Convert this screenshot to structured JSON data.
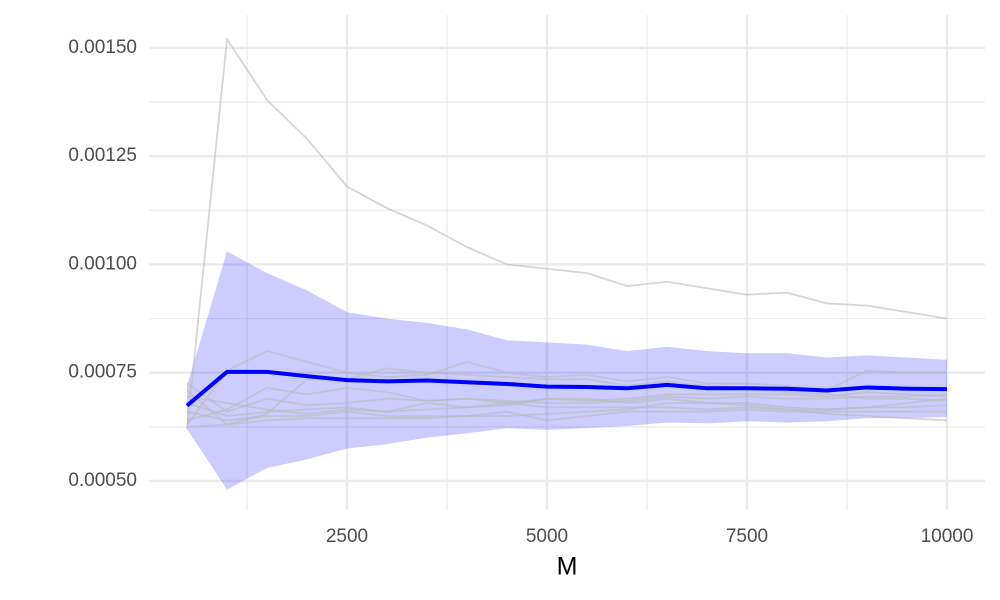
{
  "chart_data": {
    "type": "line",
    "x_label": "M",
    "x": [
      500,
      1000,
      1500,
      2000,
      2500,
      3000,
      3500,
      4000,
      4500,
      5000,
      5500,
      6000,
      6500,
      7000,
      7500,
      8000,
      8500,
      9000,
      9500,
      10000
    ],
    "xlim": [
      25,
      10475
    ],
    "ylim": [
      0.000433,
      0.001576
    ],
    "xticks": [
      2500,
      5000,
      7500,
      10000
    ],
    "x_minor_ticks": [
      1250,
      3750,
      6250,
      8750
    ],
    "yticks": [
      {
        "value": 0.0005,
        "label": "0.00050"
      },
      {
        "value": 0.00075,
        "label": "0.00075"
      },
      {
        "value": 0.001,
        "label": "0.00100"
      },
      {
        "value": 0.00125,
        "label": "0.00125"
      },
      {
        "value": 0.0015,
        "label": "0.00150"
      }
    ],
    "y_minor_ticks": [
      0.000625,
      0.000875,
      0.001125,
      0.001375
    ],
    "grid": true,
    "band": {
      "color": "#0000ff",
      "upper": [
        0.00072,
        0.00103,
        0.00098,
        0.00094,
        0.00089,
        0.000875,
        0.000865,
        0.00085,
        0.000825,
        0.00082,
        0.000815,
        0.0008,
        0.00081,
        0.0008,
        0.000795,
        0.000795,
        0.000785,
        0.00079,
        0.000785,
        0.00078
      ],
      "lower": [
        0.00062,
        0.00048,
        0.00053,
        0.00055,
        0.000575,
        0.000585,
        0.0006,
        0.00061,
        0.000622,
        0.000618,
        0.000622,
        0.000627,
        0.000635,
        0.000633,
        0.000638,
        0.000635,
        0.000638,
        0.000645,
        0.000645,
        0.000648
      ]
    },
    "series": [
      {
        "color": "#bbbbbb",
        "values": [
          0.00062,
          0.00152,
          0.00138,
          0.00129,
          0.00118,
          0.00113,
          0.00109,
          0.00104,
          0.001,
          0.00099,
          0.00098,
          0.00095,
          0.00096,
          0.000945,
          0.00093,
          0.000935,
          0.00091,
          0.000905,
          0.00089,
          0.000875
        ]
      },
      {
        "color": "#bbbbbb",
        "values": [
          0.000725,
          0.00066,
          0.00069,
          0.000675,
          0.00068,
          0.00069,
          0.000685,
          0.00069,
          0.000685,
          0.00068,
          0.00068,
          0.000685,
          0.000695,
          0.00069,
          0.000695,
          0.00069,
          0.00069,
          0.000695,
          0.000695,
          0.0007
        ]
      },
      {
        "color": "#bbbbbb",
        "values": [
          0.00063,
          0.000755,
          0.0008,
          0.000775,
          0.00075,
          0.00074,
          0.000745,
          0.000775,
          0.00075,
          0.00074,
          0.000745,
          0.00073,
          0.00074,
          0.000725,
          0.000725,
          0.00072,
          0.00071,
          0.000755,
          0.00075,
          0.00075
        ]
      },
      {
        "color": "#bbbbbb",
        "values": [
          0.00071,
          0.00063,
          0.000655,
          0.000735,
          0.000735,
          0.00076,
          0.00075,
          0.000745,
          0.00074,
          0.000735,
          0.000735,
          0.00072,
          0.00073,
          0.00072,
          0.000715,
          0.000705,
          0.0007,
          0.00069,
          0.00069,
          0.000685
        ]
      },
      {
        "color": "#bbbbbb",
        "values": [
          0.00064,
          0.000665,
          0.000715,
          0.0007,
          0.000715,
          0.000705,
          0.000685,
          0.00069,
          0.00068,
          0.00069,
          0.000685,
          0.00069,
          0.0007,
          0.0007,
          0.0007,
          0.0007,
          0.000695,
          0.000705,
          0.0007,
          0.000695
        ]
      },
      {
        "color": "#bbbbbb",
        "values": [
          0.000695,
          0.00068,
          0.000665,
          0.000655,
          0.000665,
          0.00066,
          0.000665,
          0.00067,
          0.000675,
          0.00069,
          0.00069,
          0.00068,
          0.00069,
          0.00068,
          0.00068,
          0.00067,
          0.000665,
          0.00067,
          0.00067,
          0.000675
        ]
      },
      {
        "color": "#bbbbbb",
        "values": [
          0.00066,
          0.00064,
          0.00065,
          0.00065,
          0.00066,
          0.00065,
          0.00065,
          0.00065,
          0.00066,
          0.00064,
          0.00065,
          0.00066,
          0.00066,
          0.00066,
          0.000665,
          0.00066,
          0.00066,
          0.00066,
          0.00066,
          0.00066
        ]
      },
      {
        "color": "#bbbbbb",
        "values": [
          0.000625,
          0.00063,
          0.00064,
          0.000645,
          0.000645,
          0.000645,
          0.000645,
          0.00065,
          0.00065,
          0.000655,
          0.00066,
          0.000665,
          0.00068,
          0.00068,
          0.000675,
          0.000665,
          0.000655,
          0.00065,
          0.000645,
          0.00064
        ]
      },
      {
        "color": "#bbbbbb",
        "values": [
          0.00068,
          0.00065,
          0.00066,
          0.000665,
          0.00067,
          0.00066,
          0.00068,
          0.00067,
          0.00068,
          0.00067,
          0.00067,
          0.00067,
          0.00067,
          0.000665,
          0.00067,
          0.000665,
          0.000665,
          0.00067,
          0.00068,
          0.00069
        ]
      }
    ],
    "mean": {
      "color": "#0000ff",
      "values": [
        0.000674,
        0.000752,
        0.000752,
        0.000742,
        0.000733,
        0.00073,
        0.000732,
        0.000728,
        0.000724,
        0.000718,
        0.000717,
        0.000714,
        0.000722,
        0.000714,
        0.000714,
        0.000713,
        0.000709,
        0.000716,
        0.000713,
        0.000712
      ]
    }
  }
}
